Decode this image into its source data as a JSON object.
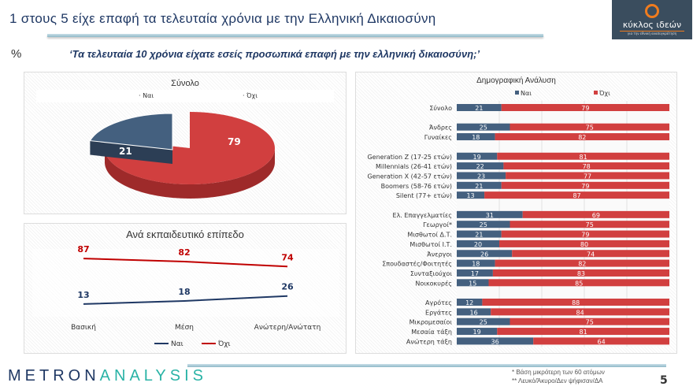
{
  "header": {
    "title": "1 στους 5 είχε επαφή τα τελευταία χρόνια με την Ελληνική Δικαιοσύνη",
    "logo_text": "κύκλος ιδεών",
    "logo_sub": "για την εθνική ανασυγκρότηση",
    "percent_sign": "%",
    "question": "‘Τα τελευταία 10 χρόνια είχατε εσείς προσωπικά επαφή με την ελληνική δικαιοσύνη;’"
  },
  "colors": {
    "yes": "#44607f",
    "no": "#d13f3f",
    "yes_line": "#1f3864",
    "no_line": "#c00000"
  },
  "chart_data": [
    {
      "type": "pie",
      "title": "Σύνολο",
      "legend": [
        "Ναι",
        "Όχι"
      ],
      "legend_position": "top",
      "categories": [
        "Ναι",
        "Όχι"
      ],
      "values": [
        21,
        79
      ]
    },
    {
      "type": "line",
      "title": "Ανά εκπαιδευτικό επίπεδο",
      "categories": [
        "Βασική",
        "Μέση",
        "Ανώτερη/Ανώτατη"
      ],
      "legend_position": "bottom",
      "ylim": [
        0,
        100
      ],
      "series": [
        {
          "name": "Ναι",
          "values": [
            13,
            18,
            26
          ]
        },
        {
          "name": "Όχι",
          "values": [
            87,
            82,
            74
          ]
        }
      ]
    },
    {
      "type": "bar",
      "stacked": true,
      "orientation": "horizontal",
      "title": "Δημογραφική Ανάλυση",
      "legend": [
        "Ναι",
        "Όχι"
      ],
      "legend_position": "top",
      "xlim": [
        0,
        100
      ],
      "categories": [
        "Σύνολο",
        "",
        "Άνδρες",
        "Γυναίκες",
        "",
        "Generation Z (17-25 ετών)",
        "Millennials (26-41 ετών)",
        "Generation X (42-57 ετών)",
        "Boomers (58-76 ετών)",
        "Silent (77+ ετών)",
        "",
        "Ελ. Επαγγελματίες",
        "Γεωργοί*",
        "Μισθωτοί Δ.Τ.",
        "Μισθωτοί Ι.Τ.",
        "Άνεργοι",
        "Σπουδαστές/Φοιτητές",
        "Συνταξιούχοι",
        "Νοικοκυρές",
        "",
        "Αγρότες",
        "Εργάτες",
        "Μικρομεσαίοι",
        "Μεσαία τάξη",
        "Ανώτερη τάξη"
      ],
      "series": [
        {
          "name": "Ναι",
          "values": [
            21,
            null,
            25,
            18,
            null,
            19,
            22,
            23,
            21,
            13,
            null,
            31,
            25,
            21,
            20,
            26,
            18,
            17,
            15,
            null,
            12,
            16,
            25,
            19,
            36
          ]
        },
        {
          "name": "Όχι",
          "values": [
            79,
            null,
            75,
            82,
            null,
            81,
            78,
            77,
            79,
            87,
            null,
            69,
            75,
            79,
            80,
            74,
            82,
            83,
            85,
            null,
            88,
            84,
            75,
            81,
            64
          ]
        }
      ]
    }
  ],
  "footer": {
    "brand_a": "METRON",
    "brand_b": "ANALYSIS",
    "note1": "*  Βάση μικρότερη των 60 ατόμων",
    "note2": "** Λευκό/Άκυρο/Δεν ψήφισαν/ΔΑ",
    "page": "5"
  }
}
